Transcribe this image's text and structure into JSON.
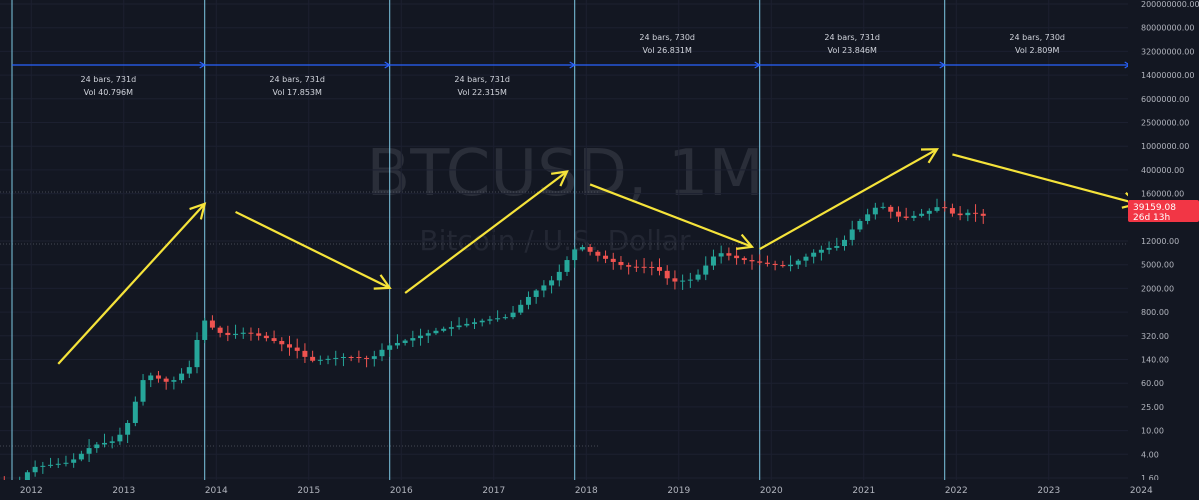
{
  "symbol": {
    "ticker": "BTCUSD, 1M",
    "description": "Bitcoin / U.S. Dollar"
  },
  "price_badge": {
    "price": "39159.08",
    "countdown": "26d 13h",
    "color": "#f23645"
  },
  "colors": {
    "background": "#131722",
    "up": "#26a69a",
    "down": "#ef5350",
    "cycle_line": "#7ec8e3",
    "range_line": "#2962ff",
    "arrow": "#f5e33a"
  },
  "x_axis": {
    "ticks": [
      "2012",
      "2013",
      "2014",
      "2015",
      "2016",
      "2017",
      "2018",
      "2019",
      "2020",
      "2021",
      "2022",
      "2023",
      "2024"
    ]
  },
  "y_axis": {
    "scale": "log",
    "ticks": [
      "200000000.00",
      "80000000.00",
      "32000000.00",
      "14000000.00",
      "6000000.00",
      "2500000.00",
      "1000000.00",
      "400000.00",
      "160000.00",
      "70000.00",
      "12000.00",
      "5000.00",
      "2000.00",
      "800.00",
      "320.00",
      "140.00",
      "60.00",
      "25.00",
      "10.00",
      "4.00",
      "1.60"
    ]
  },
  "measurements": [
    {
      "bars": "24 bars, 731d",
      "vol": "Vol 40.796M"
    },
    {
      "bars": "24 bars, 731d",
      "vol": "Vol 17.853M"
    },
    {
      "bars": "24 bars, 731d",
      "vol": "Vol 22.315M"
    },
    {
      "bars": "24 bars, 730d",
      "vol": "Vol 26.831M"
    },
    {
      "bars": "24 bars, 731d",
      "vol": "Vol 23.846M"
    },
    {
      "bars": "24 bars, 730d",
      "vol": "Vol 2.809M"
    }
  ],
  "cycle_dates": [
    "2011-10",
    "2013-11",
    "2015-11",
    "2017-11",
    "2019-11",
    "2021-11",
    "2023-11"
  ],
  "arrows": [
    {
      "from": [
        "2012-04",
        200
      ],
      "to": [
        "2013-11",
        60000
      ]
    },
    {
      "from": [
        "2014-03",
        45000
      ],
      "to": [
        "2015-11",
        3000
      ]
    },
    {
      "from": [
        "2016-01",
        2500
      ],
      "to": [
        "2017-10",
        190000
      ]
    },
    {
      "from": [
        "2018-01",
        120000
      ],
      "to": [
        "2019-10",
        13000
      ]
    },
    {
      "from": [
        "2019-11",
        12000
      ],
      "to": [
        "2021-10",
        420000
      ]
    },
    {
      "from": [
        "2021-12",
        350000
      ],
      "to": [
        "2023-12",
        60000
      ]
    }
  ],
  "chart_data": {
    "type": "candlestick",
    "title": "BTCUSD, 1M",
    "subtitle": "Bitcoin / U.S. Dollar",
    "y_scale": "log",
    "interval": "1M",
    "last_price": 39159.08,
    "trend_points": [
      {
        "date": "2011-09",
        "value": 3
      },
      {
        "date": "2011-11",
        "value": 2.5
      },
      {
        "date": "2012-01",
        "value": 5
      },
      {
        "date": "2012-06",
        "value": 6
      },
      {
        "date": "2012-09",
        "value": 11
      },
      {
        "date": "2012-12",
        "value": 13
      },
      {
        "date": "2013-02",
        "value": 30
      },
      {
        "date": "2013-03",
        "value": 90
      },
      {
        "date": "2013-04",
        "value": 140
      },
      {
        "date": "2013-07",
        "value": 100
      },
      {
        "date": "2013-10",
        "value": 200
      },
      {
        "date": "2013-11",
        "value": 1100
      },
      {
        "date": "2013-12",
        "value": 800
      },
      {
        "date": "2014-02",
        "value": 550
      },
      {
        "date": "2014-05",
        "value": 620
      },
      {
        "date": "2014-08",
        "value": 480
      },
      {
        "date": "2014-12",
        "value": 300
      },
      {
        "date": "2015-01",
        "value": 220
      },
      {
        "date": "2015-06",
        "value": 260
      },
      {
        "date": "2015-09",
        "value": 235
      },
      {
        "date": "2015-11",
        "value": 370
      },
      {
        "date": "2016-06",
        "value": 680
      },
      {
        "date": "2016-12",
        "value": 960
      },
      {
        "date": "2017-03",
        "value": 1080
      },
      {
        "date": "2017-06",
        "value": 2500
      },
      {
        "date": "2017-09",
        "value": 4300
      },
      {
        "date": "2017-11",
        "value": 10000
      },
      {
        "date": "2017-12",
        "value": 14000
      },
      {
        "date": "2018-02",
        "value": 10000
      },
      {
        "date": "2018-06",
        "value": 6400
      },
      {
        "date": "2018-10",
        "value": 6300
      },
      {
        "date": "2018-12",
        "value": 3700
      },
      {
        "date": "2019-03",
        "value": 4100
      },
      {
        "date": "2019-06",
        "value": 10800
      },
      {
        "date": "2019-09",
        "value": 8300
      },
      {
        "date": "2019-12",
        "value": 7200
      },
      {
        "date": "2020-03",
        "value": 6400
      },
      {
        "date": "2020-07",
        "value": 11300
      },
      {
        "date": "2020-10",
        "value": 13800
      },
      {
        "date": "2020-12",
        "value": 29000
      },
      {
        "date": "2021-03",
        "value": 58800
      },
      {
        "date": "2021-06",
        "value": 35000
      },
      {
        "date": "2021-09",
        "value": 43800
      },
      {
        "date": "2021-11",
        "value": 57000
      },
      {
        "date": "2022-01",
        "value": 38500
      },
      {
        "date": "2022-03",
        "value": 45500
      },
      {
        "date": "2022-04",
        "value": 39159.08
      }
    ]
  }
}
